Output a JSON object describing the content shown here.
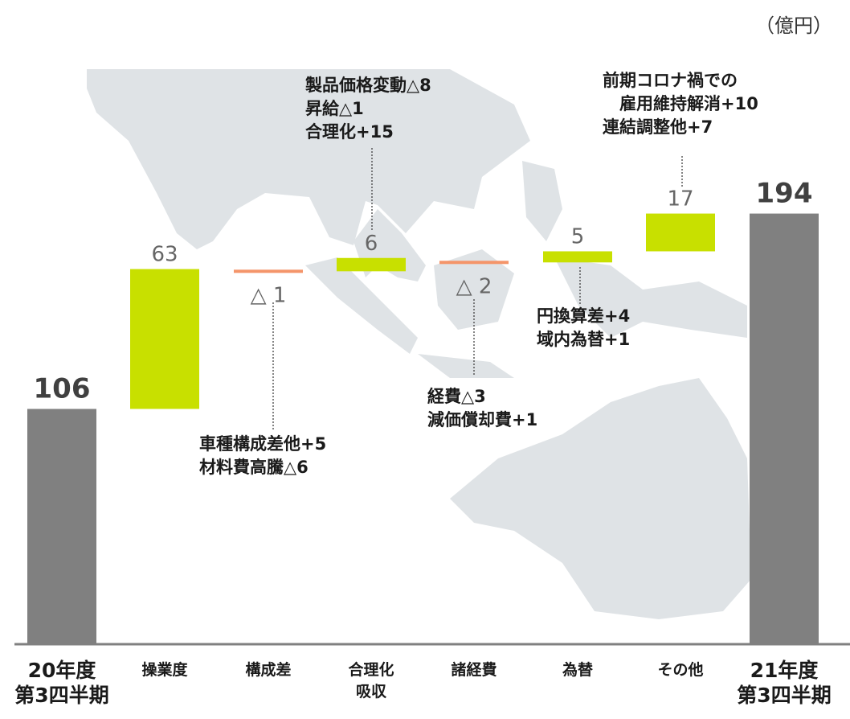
{
  "unit_label": "（億円）",
  "chart_data": {
    "type": "waterfall",
    "ylabel": "",
    "categories": [
      "20年度\n第3四半期",
      "操業度",
      "構成差",
      "合理化\n吸収",
      "諸経費",
      "為替",
      "その他",
      "21年度\n第3四半期"
    ],
    "steps": [
      {
        "category": "20年度\n第3四半期",
        "kind": "total",
        "value": 106,
        "label": "106"
      },
      {
        "category": "操業度",
        "kind": "delta",
        "value": 63,
        "label": "63"
      },
      {
        "category": "構成差",
        "kind": "delta",
        "value": -1,
        "label": "△ 1"
      },
      {
        "category": "合理化\n吸収",
        "kind": "delta",
        "value": 6,
        "label": "6"
      },
      {
        "category": "諸経費",
        "kind": "delta",
        "value": -2,
        "label": "△ 2"
      },
      {
        "category": "為替",
        "kind": "delta",
        "value": 5,
        "label": "5"
      },
      {
        "category": "その他",
        "kind": "delta",
        "value": 17,
        "label": "17"
      },
      {
        "category": "21年度\n第3四半期",
        "kind": "total",
        "value": 194,
        "label": "194"
      }
    ],
    "annotations": [
      {
        "category": "構成差",
        "lines": [
          "車種構成差他+5",
          "材料費高騰△6"
        ]
      },
      {
        "category": "合理化\n吸収",
        "lines": [
          "製品価格変動△8",
          "昇給△1",
          "合理化+15"
        ]
      },
      {
        "category": "諸経費",
        "lines": [
          "経費△3",
          "減価償却費+1"
        ]
      },
      {
        "category": "為替",
        "lines": [
          "円換算差+4",
          "域内為替+1"
        ]
      },
      {
        "category": "その他",
        "lines": [
          "前期コロナ禍での",
          "　雇用維持解消+10",
          "連結調整他+7"
        ]
      }
    ],
    "colors": {
      "total": "#808080",
      "increase": "#c8e000",
      "decrease": "#f4956a",
      "axis": "#808080",
      "map": "#dfe3e6"
    }
  }
}
